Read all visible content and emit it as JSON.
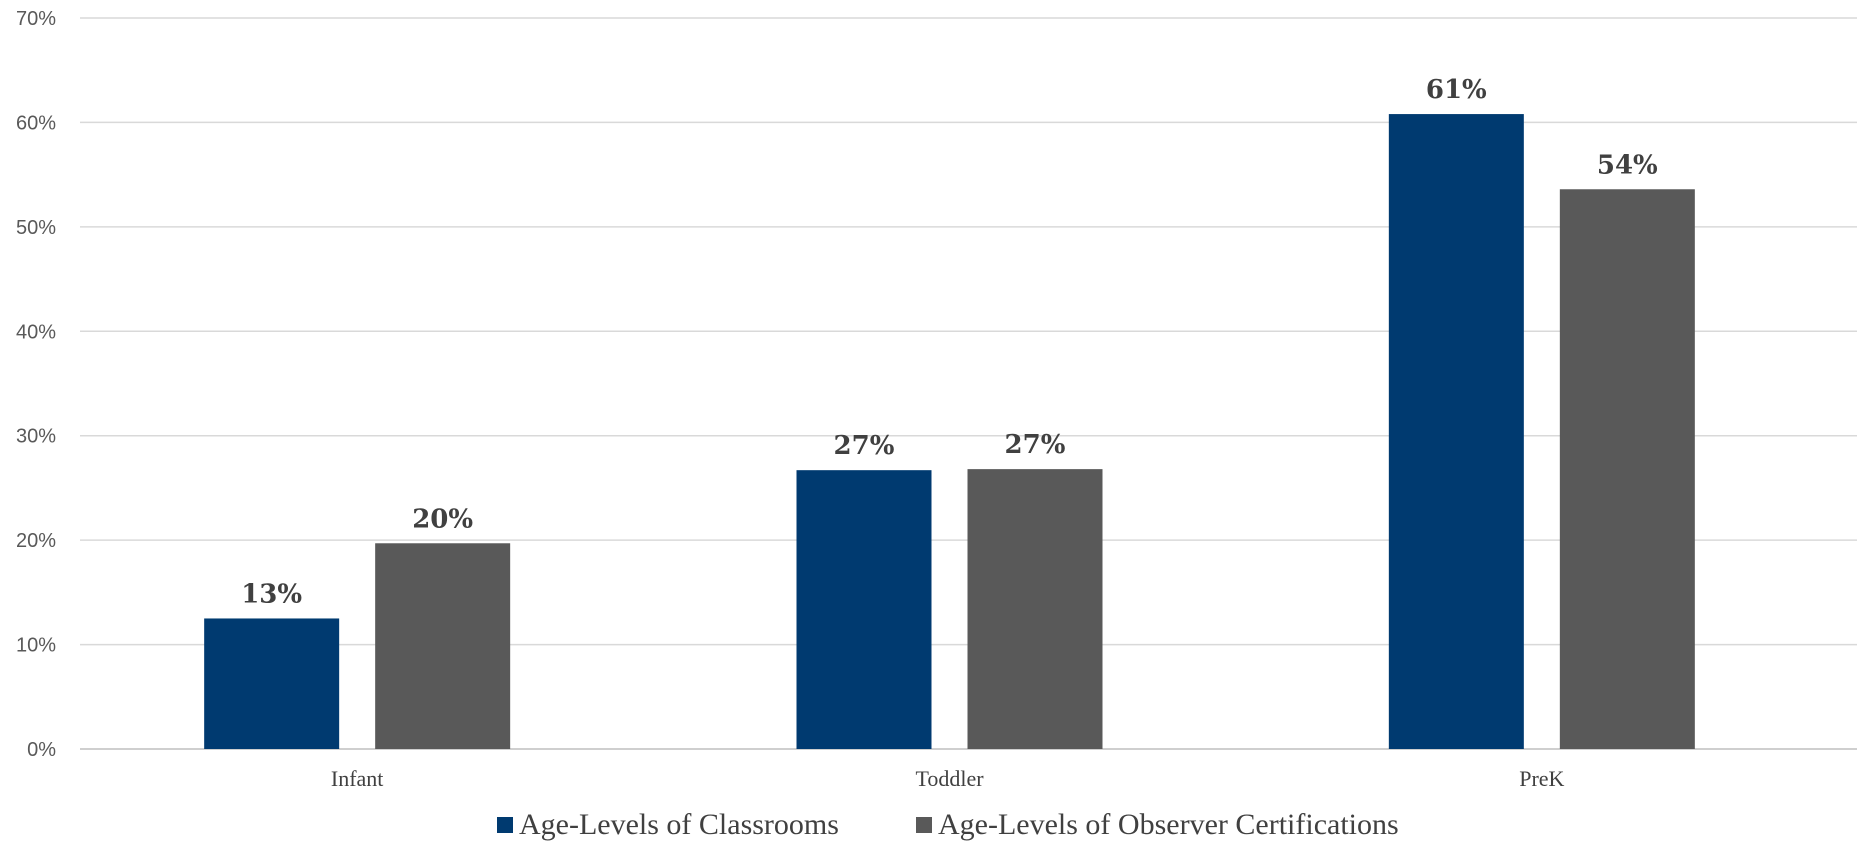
{
  "chart_data": {
    "type": "bar",
    "categories": [
      "Infant",
      "Toddler",
      "PreK"
    ],
    "series": [
      {
        "name": "Age-Levels of Classrooms",
        "values": [
          12.5,
          26.7,
          60.8
        ],
        "labels": [
          "13%",
          "27%",
          "61%"
        ],
        "color": "#003A70"
      },
      {
        "name": "Age-Levels of Observer Certifications",
        "values": [
          19.7,
          26.8,
          53.6
        ],
        "labels": [
          "20%",
          "27%",
          "54%"
        ],
        "color": "#595959"
      }
    ],
    "ylim": [
      0,
      70
    ],
    "yticks": [
      "0%",
      "10%",
      "20%",
      "30%",
      "40%",
      "50%",
      "60%",
      "70%"
    ],
    "grid": true,
    "legend_position": "bottom",
    "title": "",
    "xlabel": "",
    "ylabel": ""
  }
}
